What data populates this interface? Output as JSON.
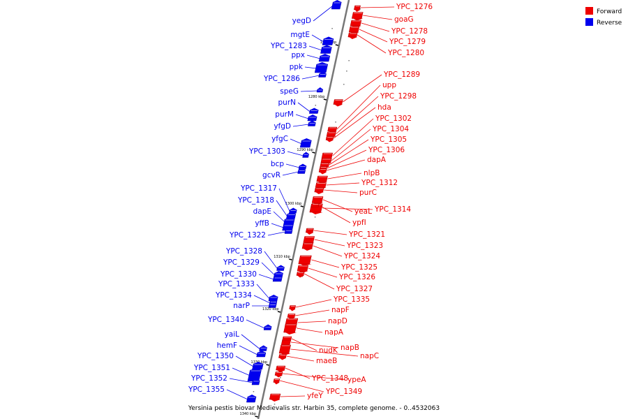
{
  "caption": "Yersinia pestis biovar Medievalis str. Harbin 35, complete genome. - 0..4532063",
  "legend": [
    {
      "label": "Forward",
      "color": "#ee0000"
    },
    {
      "label": "Reverse",
      "color": "#0000ee"
    }
  ],
  "colors": {
    "forward": "#ee0000",
    "reverse": "#0000ee",
    "axis": "#777777"
  },
  "ticks": [
    "1270 kbp",
    "1280 kbp",
    "1290 kbp",
    "1300 kbp",
    "1310 kbp",
    "1320 kbp",
    "1330 kbp",
    "1340 kbp"
  ],
  "genes": [
    {
      "name": "YPC_1276",
      "strand": "forward"
    },
    {
      "name": "goaG",
      "strand": "forward"
    },
    {
      "name": "YPC_1278",
      "strand": "forward"
    },
    {
      "name": "YPC_1279",
      "strand": "forward"
    },
    {
      "name": "YPC_1280",
      "strand": "forward"
    },
    {
      "name": "YPC_1289",
      "strand": "forward"
    },
    {
      "name": "upp",
      "strand": "forward"
    },
    {
      "name": "YPC_1298",
      "strand": "forward"
    },
    {
      "name": "hda",
      "strand": "forward"
    },
    {
      "name": "YPC_1302",
      "strand": "forward"
    },
    {
      "name": "YPC_1304",
      "strand": "forward"
    },
    {
      "name": "YPC_1305",
      "strand": "forward"
    },
    {
      "name": "YPC_1306",
      "strand": "forward"
    },
    {
      "name": "dapA",
      "strand": "forward"
    },
    {
      "name": "nlpB",
      "strand": "forward"
    },
    {
      "name": "YPC_1312",
      "strand": "forward"
    },
    {
      "name": "purC",
      "strand": "forward"
    },
    {
      "name": "yeaL",
      "strand": "forward"
    },
    {
      "name": "YPC_1314",
      "strand": "forward"
    },
    {
      "name": "ypfI",
      "strand": "forward"
    },
    {
      "name": "YPC_1321",
      "strand": "forward"
    },
    {
      "name": "YPC_1323",
      "strand": "forward"
    },
    {
      "name": "YPC_1324",
      "strand": "forward"
    },
    {
      "name": "YPC_1325",
      "strand": "forward"
    },
    {
      "name": "YPC_1326",
      "strand": "forward"
    },
    {
      "name": "YPC_1327",
      "strand": "forward"
    },
    {
      "name": "YPC_1335",
      "strand": "forward"
    },
    {
      "name": "napF",
      "strand": "forward"
    },
    {
      "name": "napD",
      "strand": "forward"
    },
    {
      "name": "napA",
      "strand": "forward"
    },
    {
      "name": "napB",
      "strand": "forward"
    },
    {
      "name": "nudK",
      "strand": "forward"
    },
    {
      "name": "napC",
      "strand": "forward"
    },
    {
      "name": "maeB",
      "strand": "forward"
    },
    {
      "name": "YPC_1348",
      "strand": "forward"
    },
    {
      "name": "ypeA",
      "strand": "forward"
    },
    {
      "name": "YPC_1349",
      "strand": "forward"
    },
    {
      "name": "yfeY",
      "strand": "forward"
    },
    {
      "name": "yegD",
      "strand": "reverse"
    },
    {
      "name": "mgtE",
      "strand": "reverse"
    },
    {
      "name": "YPC_1283",
      "strand": "reverse"
    },
    {
      "name": "ppx",
      "strand": "reverse"
    },
    {
      "name": "ppk",
      "strand": "reverse"
    },
    {
      "name": "YPC_1286",
      "strand": "reverse"
    },
    {
      "name": "speG",
      "strand": "reverse"
    },
    {
      "name": "purN",
      "strand": "reverse"
    },
    {
      "name": "purM",
      "strand": "reverse"
    },
    {
      "name": "yfgD",
      "strand": "reverse"
    },
    {
      "name": "yfgC",
      "strand": "reverse"
    },
    {
      "name": "YPC_1303",
      "strand": "reverse"
    },
    {
      "name": "bcp",
      "strand": "reverse"
    },
    {
      "name": "gcvR",
      "strand": "reverse"
    },
    {
      "name": "YPC_1317",
      "strand": "reverse"
    },
    {
      "name": "YPC_1318",
      "strand": "reverse"
    },
    {
      "name": "dapE",
      "strand": "reverse"
    },
    {
      "name": "yffB",
      "strand": "reverse"
    },
    {
      "name": "YPC_1322",
      "strand": "reverse"
    },
    {
      "name": "YPC_1328",
      "strand": "reverse"
    },
    {
      "name": "YPC_1329",
      "strand": "reverse"
    },
    {
      "name": "YPC_1330",
      "strand": "reverse"
    },
    {
      "name": "YPC_1333",
      "strand": "reverse"
    },
    {
      "name": "YPC_1334",
      "strand": "reverse"
    },
    {
      "name": "narP",
      "strand": "reverse"
    },
    {
      "name": "YPC_1340",
      "strand": "reverse"
    },
    {
      "name": "yaiL",
      "strand": "reverse"
    },
    {
      "name": "hemF",
      "strand": "reverse"
    },
    {
      "name": "YPC_1350",
      "strand": "reverse"
    },
    {
      "name": "YPC_1351",
      "strand": "reverse"
    },
    {
      "name": "YPC_1352",
      "strand": "reverse"
    },
    {
      "name": "YPC_1355",
      "strand": "reverse"
    }
  ]
}
